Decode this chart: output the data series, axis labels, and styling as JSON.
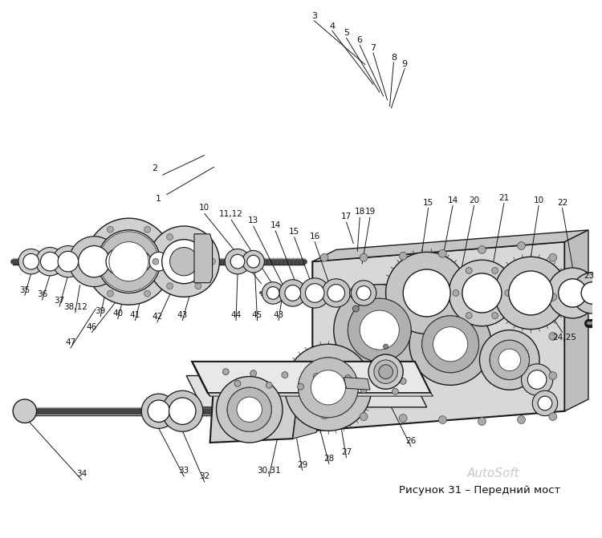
{
  "caption": "Рисунок 31 – Передний мост",
  "watermark": "AutoSoft",
  "bg_color": "#ffffff",
  "fig_width": 7.5,
  "fig_height": 6.71,
  "dpi": 100,
  "caption_fontsize": 9.5,
  "watermark_fontsize": 11,
  "watermark_color": "#c8c8d0",
  "line_color": "#1a1a1a",
  "label_fontsize": 7.5
}
